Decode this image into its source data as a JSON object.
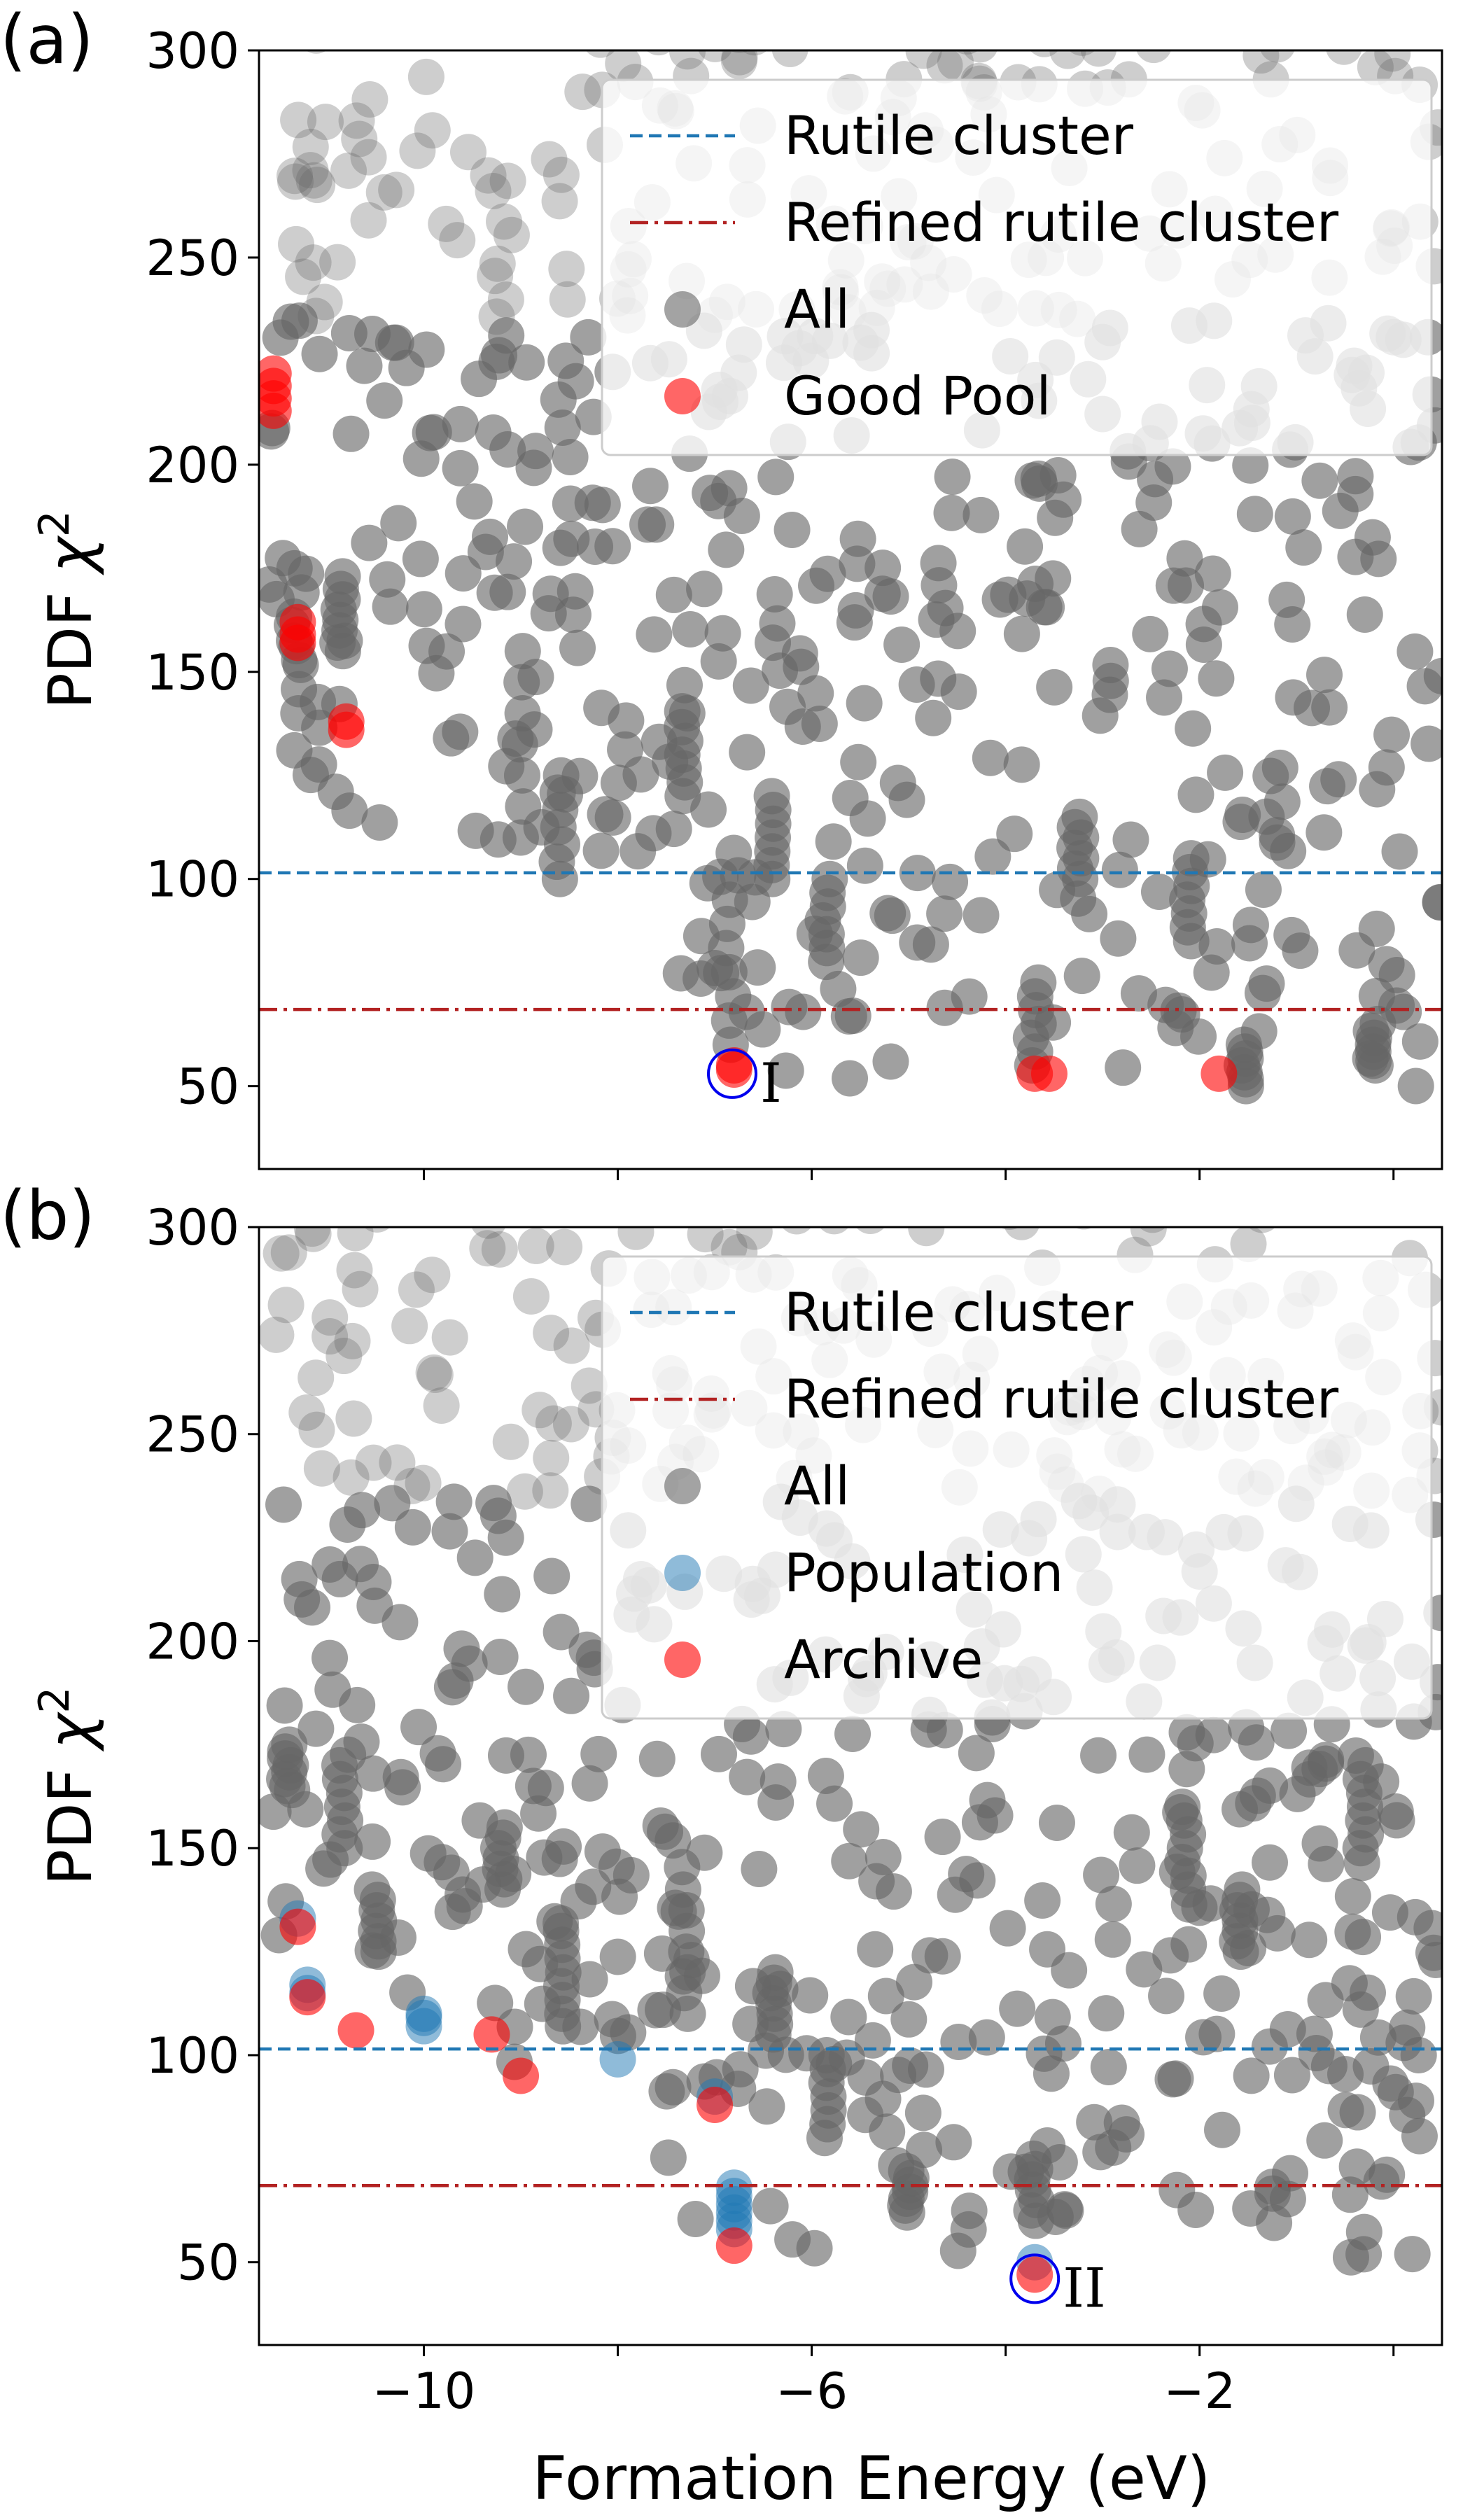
{
  "figure": {
    "xlabel": "Formation Energy (eV)",
    "x_tick_labels": [
      "−10",
      "−6",
      "−2"
    ]
  },
  "chart_data": [
    {
      "panel_label": "(a)",
      "type": "scatter",
      "xlabel": "Formation Energy (eV)",
      "ylabel": "PDF χ²",
      "xlim": [
        -11.7,
        0.5
      ],
      "ylim": [
        30,
        300
      ],
      "x_ticks": [
        -10,
        -6,
        -2
      ],
      "y_ticks": [
        50,
        100,
        150,
        200,
        250,
        300
      ],
      "grid": false,
      "legend_position": "top-right",
      "hlines": [
        {
          "name": "Rutile cluster",
          "y": 101.5,
          "style": "dashed",
          "color": "#1f77b4"
        },
        {
          "name": "Refined rutile cluster",
          "y": 68.5,
          "style": "dashdot",
          "color": "#b22222"
        }
      ],
      "series": [
        {
          "name": "All",
          "color": "#666666",
          "alpha": 0.6,
          "generated_count": 620
        },
        {
          "name": "Good Pool",
          "color": "#ff0000",
          "alpha": 0.6,
          "points": [
            [
              -11.55,
              222
            ],
            [
              -11.55,
              219
            ],
            [
              -11.55,
              216
            ],
            [
              -11.55,
              213
            ],
            [
              -11.3,
              162
            ],
            [
              -11.3,
              159
            ],
            [
              -11.3,
              157
            ],
            [
              -10.8,
              138
            ],
            [
              -10.8,
              136
            ],
            [
              -6.8,
              55
            ],
            [
              -6.8,
              54
            ],
            [
              -3.7,
              53
            ],
            [
              -3.55,
              53
            ],
            [
              -1.8,
              53
            ]
          ]
        }
      ],
      "annotations": [
        {
          "label": "I",
          "x": -6.82,
          "y": 53
        }
      ]
    },
    {
      "panel_label": "(b)",
      "type": "scatter",
      "xlabel": "Formation Energy (eV)",
      "ylabel": "PDF χ²",
      "xlim": [
        -11.7,
        0.5
      ],
      "ylim": [
        30,
        300
      ],
      "x_ticks": [
        -10,
        -6,
        -2
      ],
      "y_ticks": [
        50,
        100,
        150,
        200,
        250,
        300
      ],
      "grid": false,
      "legend_position": "top-right",
      "hlines": [
        {
          "name": "Rutile cluster",
          "y": 101.5,
          "style": "dashed",
          "color": "#1f77b4"
        },
        {
          "name": "Refined rutile cluster",
          "y": 68.5,
          "style": "dashdot",
          "color": "#b22222"
        }
      ],
      "series": [
        {
          "name": "All",
          "color": "#666666",
          "alpha": 0.6,
          "generated_count": 640
        },
        {
          "name": "Population",
          "color": "#1f77b4",
          "alpha": 0.5,
          "points": [
            [
              -11.3,
              133
            ],
            [
              -11.2,
              117
            ],
            [
              -11.2,
              115
            ],
            [
              -10.0,
              110
            ],
            [
              -10.0,
              109
            ],
            [
              -10.0,
              107
            ],
            [
              -8.0,
              99
            ],
            [
              -7.0,
              90
            ],
            [
              -6.8,
              68
            ],
            [
              -6.8,
              66
            ],
            [
              -6.8,
              64
            ],
            [
              -6.8,
              62
            ],
            [
              -6.8,
              60
            ],
            [
              -6.8,
              58
            ],
            [
              -3.7,
              50
            ]
          ]
        },
        {
          "name": "Archive",
          "color": "#ff0000",
          "alpha": 0.6,
          "points": [
            [
              -11.3,
              131
            ],
            [
              -11.2,
              114
            ],
            [
              -10.7,
              106
            ],
            [
              -9.3,
              105
            ],
            [
              -9.0,
              95
            ],
            [
              -7.0,
              88
            ],
            [
              -6.8,
              54
            ],
            [
              -3.7,
              47
            ]
          ]
        }
      ],
      "annotations": [
        {
          "label": "II",
          "x": -3.7,
          "y": 46
        }
      ]
    }
  ]
}
